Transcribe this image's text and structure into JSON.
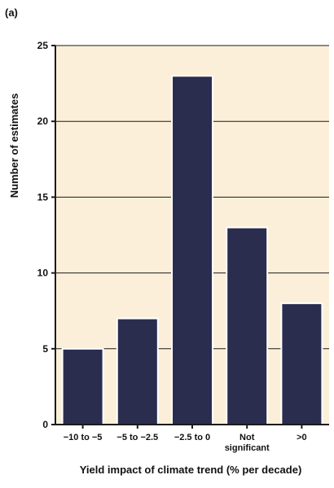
{
  "panel_label": "(a)",
  "colors": {
    "plot_background": "#fcefd9",
    "bar_fill": "#2b2d4f",
    "bar_stroke": "#ffffff",
    "gridline": "#1a1a1a",
    "axis": "#1a1a1a"
  },
  "chart_data": {
    "type": "bar",
    "title": "",
    "xlabel": "Yield impact of climate trend (% per decade)",
    "ylabel": "Number of estimates",
    "categories": [
      [
        "−10 to −5"
      ],
      [
        "−5 to −2.5"
      ],
      [
        "−2.5 to 0"
      ],
      [
        "Not",
        "significant"
      ],
      [
        ">0"
      ]
    ],
    "values": [
      5,
      7,
      23,
      13,
      8
    ],
    "ylim": [
      0,
      25
    ],
    "yticks": [
      0,
      5,
      10,
      15,
      20,
      25
    ],
    "grid": true,
    "legend": "none"
  }
}
